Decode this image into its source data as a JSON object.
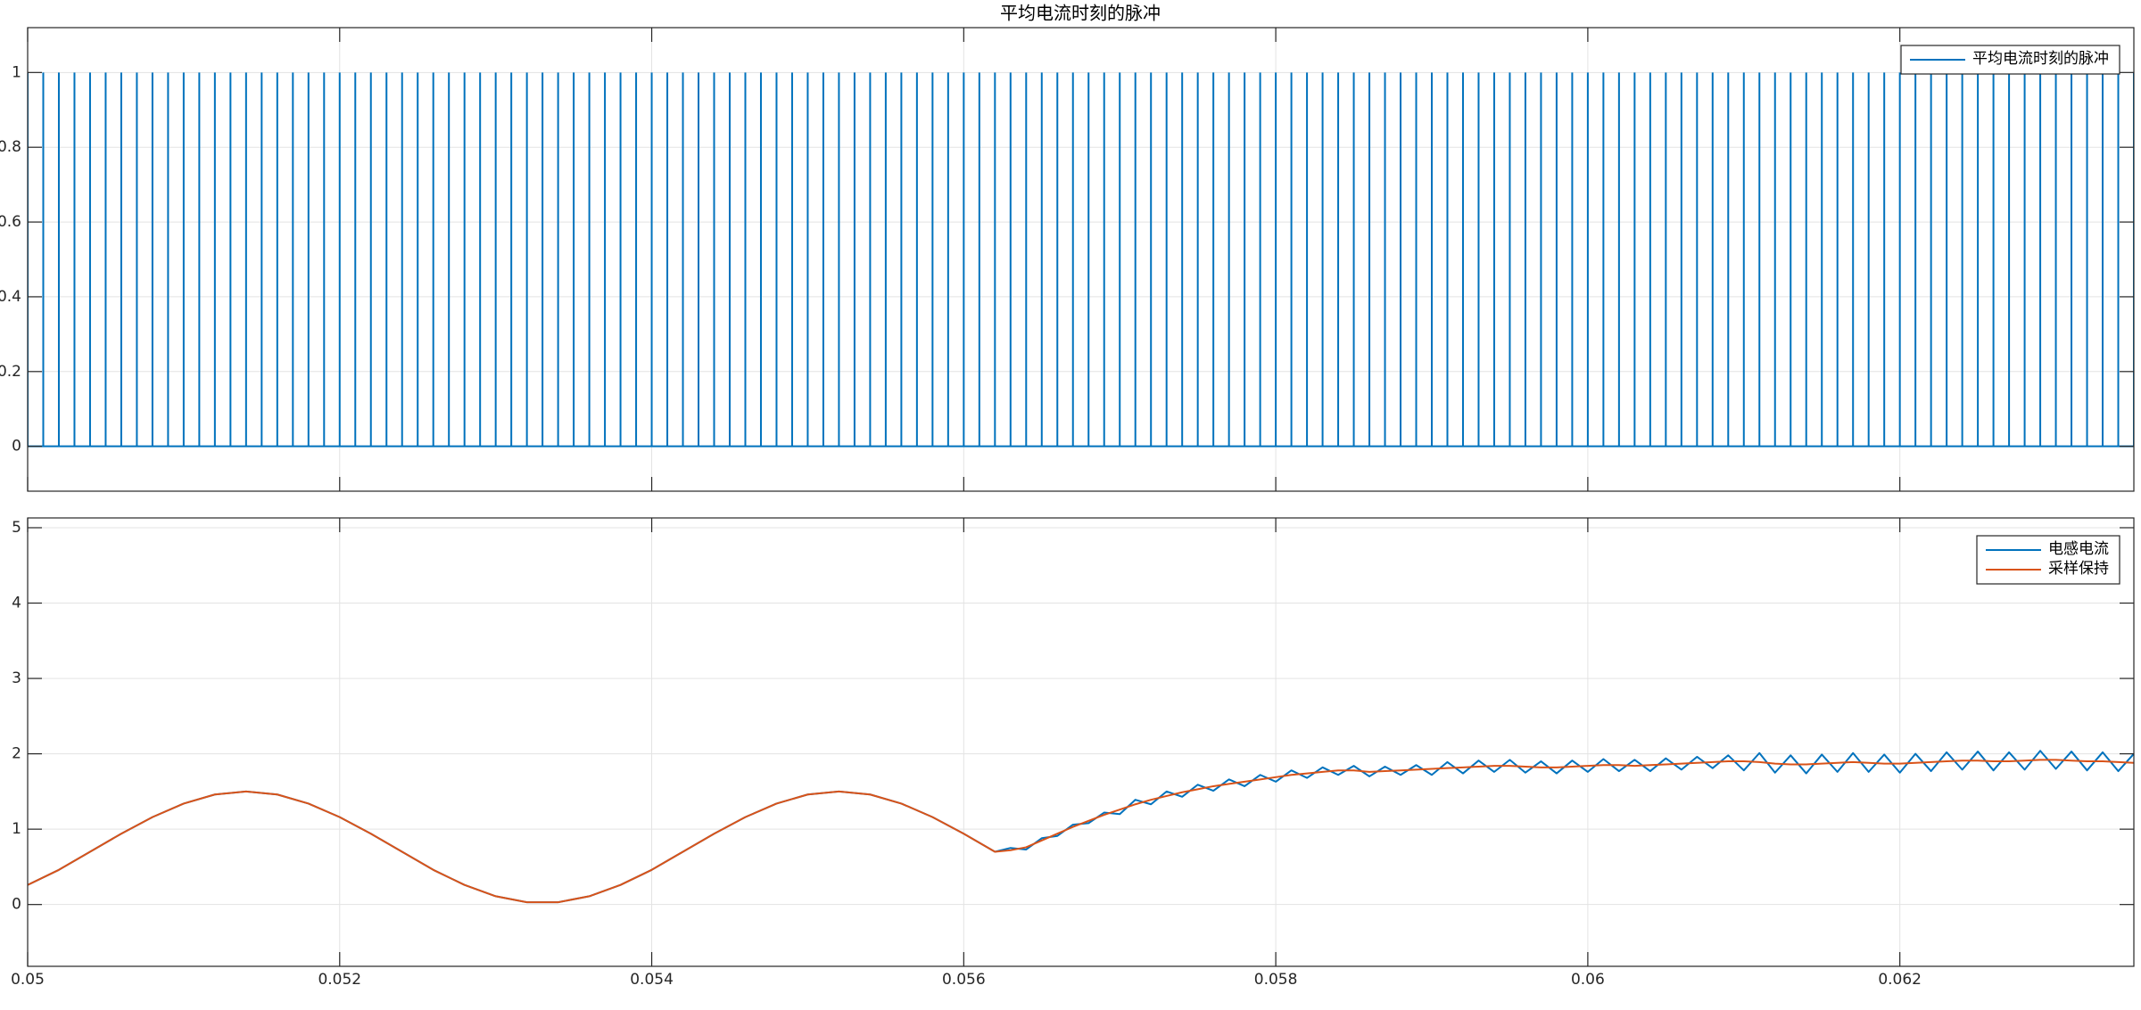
{
  "chart_data": [
    {
      "type": "stem",
      "title": "平均电流时刻的脉冲",
      "series": [
        {
          "name": "平均电流时刻的脉冲",
          "color": "#0072BD",
          "x": [
            0.05,
            0.0501,
            0.0502,
            0.0503,
            0.0504,
            0.0505,
            0.0506,
            0.0507,
            0.0508,
            0.0509,
            0.051,
            0.0511,
            0.0512,
            0.0513,
            0.0514,
            0.0515,
            0.0516,
            0.0517,
            0.0518,
            0.0519,
            0.052,
            0.0521,
            0.0522,
            0.0523,
            0.0524,
            0.0525,
            0.0526,
            0.0527,
            0.0528,
            0.0529,
            0.053,
            0.0531,
            0.0532,
            0.0533,
            0.0534,
            0.0535,
            0.0536,
            0.0537,
            0.0538,
            0.0539,
            0.054,
            0.0541,
            0.0542,
            0.0543,
            0.0544,
            0.0545,
            0.0546,
            0.0547,
            0.0548,
            0.0549,
            0.055,
            0.0551,
            0.0552,
            0.0553,
            0.0554,
            0.0555,
            0.0556,
            0.0557,
            0.0558,
            0.0559,
            0.056,
            0.0561,
            0.0562,
            0.0563,
            0.0564,
            0.0565,
            0.0566,
            0.0567,
            0.0568,
            0.0569,
            0.057,
            0.0571,
            0.0572,
            0.0573,
            0.0574,
            0.0575,
            0.0576,
            0.0577,
            0.0578,
            0.0579,
            0.058,
            0.0581,
            0.0582,
            0.0583,
            0.0584,
            0.0585,
            0.0586,
            0.0587,
            0.0588,
            0.0589,
            0.059,
            0.0591,
            0.0592,
            0.0593,
            0.0594,
            0.0595,
            0.0596,
            0.0597,
            0.0598,
            0.0599,
            0.06,
            0.0601,
            0.0602,
            0.0603,
            0.0604,
            0.0605,
            0.0606,
            0.0607,
            0.0608,
            0.0609,
            0.061,
            0.0611,
            0.0612,
            0.0613,
            0.0614,
            0.0615,
            0.0616,
            0.0617,
            0.0618,
            0.0619,
            0.062,
            0.0621,
            0.0622,
            0.0623,
            0.0624,
            0.0625,
            0.0626,
            0.0627,
            0.0628,
            0.0629,
            0.063,
            0.0631,
            0.0632,
            0.0633,
            0.0634,
            0.0635
          ],
          "values": [
            1,
            1,
            1,
            1,
            1,
            1,
            1,
            1,
            1,
            1,
            1,
            1,
            1,
            1,
            1,
            1,
            1,
            1,
            1,
            1,
            1,
            1,
            1,
            1,
            1,
            1,
            1,
            1,
            1,
            1,
            1,
            1,
            1,
            1,
            1,
            1,
            1,
            1,
            1,
            1,
            1,
            1,
            1,
            1,
            1,
            1,
            1,
            1,
            1,
            1,
            1,
            1,
            1,
            1,
            1,
            1,
            1,
            1,
            1,
            1,
            1,
            1,
            1,
            1,
            1,
            1,
            1,
            1,
            1,
            1,
            1,
            1,
            1,
            1,
            1,
            1,
            1,
            1,
            1,
            1,
            1,
            1,
            1,
            1,
            1,
            1,
            1,
            1,
            1,
            1,
            1,
            1,
            1,
            1,
            1,
            1,
            1,
            1,
            1,
            1,
            1,
            1,
            1,
            1,
            1,
            1,
            1,
            1,
            1,
            1,
            1,
            1,
            1,
            1,
            1,
            1,
            1,
            1,
            1,
            1,
            1,
            1,
            1,
            1,
            1,
            1,
            1,
            1,
            1,
            1,
            1,
            1,
            1,
            1,
            1,
            1
          ]
        }
      ],
      "xlim": [
        0.05,
        0.0635
      ],
      "ylim": [
        -0.12,
        1.12
      ],
      "yticks": [
        0,
        0.2,
        0.4,
        0.6,
        0.8,
        1
      ],
      "grid": true,
      "legend": "upper right"
    },
    {
      "type": "line",
      "x": [
        0.05,
        0.0502,
        0.0504,
        0.0506,
        0.0508,
        0.051,
        0.0512,
        0.0514,
        0.0516,
        0.0518,
        0.052,
        0.0522,
        0.0524,
        0.0526,
        0.0528,
        0.053,
        0.0532,
        0.0534,
        0.0536,
        0.0538,
        0.054,
        0.0542,
        0.0544,
        0.0546,
        0.0548,
        0.055,
        0.0552,
        0.0554,
        0.0556,
        0.0558,
        0.056,
        0.0562,
        0.0563,
        0.0564,
        0.0565,
        0.0566,
        0.0567,
        0.0568,
        0.0569,
        0.057,
        0.0571,
        0.0572,
        0.0573,
        0.0574,
        0.0575,
        0.0576,
        0.0577,
        0.0578,
        0.0579,
        0.058,
        0.0581,
        0.0582,
        0.0583,
        0.0584,
        0.0585,
        0.0586,
        0.0587,
        0.0588,
        0.0589,
        0.059,
        0.0591,
        0.0592,
        0.0593,
        0.0594,
        0.0595,
        0.0596,
        0.0597,
        0.0598,
        0.0599,
        0.06,
        0.0601,
        0.0602,
        0.0603,
        0.0604,
        0.0605,
        0.0606,
        0.0607,
        0.0608,
        0.0609,
        0.061,
        0.0611,
        0.0612,
        0.0613,
        0.0614,
        0.0615,
        0.0616,
        0.0617,
        0.0618,
        0.0619,
        0.062,
        0.0621,
        0.0622,
        0.0623,
        0.0624,
        0.0625,
        0.0626,
        0.0627,
        0.0628,
        0.0629,
        0.063,
        0.0631,
        0.0632,
        0.0633,
        0.0634,
        0.0635
      ],
      "series": [
        {
          "name": "电感电流",
          "color": "#0072BD",
          "values": [
            0.26,
            0.46,
            0.7,
            0.94,
            1.16,
            1.34,
            1.46,
            1.5,
            1.46,
            1.34,
            1.16,
            0.94,
            0.7,
            0.46,
            0.26,
            0.11,
            0.03,
            0.03,
            0.11,
            0.26,
            0.46,
            0.7,
            0.94,
            1.16,
            1.34,
            1.46,
            1.5,
            1.46,
            1.34,
            1.16,
            0.94,
            0.7,
            0.75,
            0.73,
            0.88,
            0.91,
            1.06,
            1.08,
            1.22,
            1.2,
            1.39,
            1.33,
            1.5,
            1.43,
            1.59,
            1.51,
            1.66,
            1.57,
            1.72,
            1.63,
            1.78,
            1.68,
            1.82,
            1.72,
            1.84,
            1.7,
            1.83,
            1.72,
            1.85,
            1.72,
            1.89,
            1.74,
            1.91,
            1.76,
            1.92,
            1.75,
            1.9,
            1.74,
            1.91,
            1.76,
            1.93,
            1.77,
            1.92,
            1.77,
            1.94,
            1.79,
            1.96,
            1.81,
            1.98,
            1.78,
            2.01,
            1.75,
            1.98,
            1.74,
            1.99,
            1.76,
            2.01,
            1.76,
            1.99,
            1.75,
            2,
            1.77,
            2.02,
            1.79,
            2.03,
            1.78,
            2.02,
            1.79,
            2.04,
            1.8,
            2.03,
            1.78,
            2.02,
            1.77,
            2
          ]
        },
        {
          "name": "采样保持",
          "color": "#D95319",
          "values": [
            0.26,
            0.46,
            0.7,
            0.94,
            1.16,
            1.34,
            1.46,
            1.5,
            1.46,
            1.34,
            1.16,
            0.94,
            0.7,
            0.46,
            0.26,
            0.11,
            0.03,
            0.03,
            0.11,
            0.26,
            0.46,
            0.7,
            0.94,
            1.16,
            1.34,
            1.46,
            1.5,
            1.46,
            1.34,
            1.16,
            0.94,
            0.7,
            0.72,
            0.76,
            0.85,
            0.94,
            1.03,
            1.11,
            1.19,
            1.26,
            1.33,
            1.39,
            1.44,
            1.49,
            1.53,
            1.57,
            1.6,
            1.63,
            1.66,
            1.69,
            1.72,
            1.74,
            1.76,
            1.78,
            1.78,
            1.76,
            1.77,
            1.78,
            1.79,
            1.8,
            1.81,
            1.82,
            1.83,
            1.84,
            1.84,
            1.83,
            1.82,
            1.82,
            1.83,
            1.84,
            1.85,
            1.85,
            1.84,
            1.85,
            1.86,
            1.87,
            1.88,
            1.89,
            1.9,
            1.9,
            1.89,
            1.87,
            1.86,
            1.86,
            1.87,
            1.88,
            1.89,
            1.88,
            1.87,
            1.87,
            1.88,
            1.89,
            1.9,
            1.91,
            1.91,
            1.9,
            1.9,
            1.91,
            1.92,
            1.92,
            1.91,
            1.9,
            1.9,
            1.89,
            1.88
          ]
        }
      ],
      "xlim": [
        0.05,
        0.0635
      ],
      "ylim": [
        -0.82,
        5.13
      ],
      "xticks": [
        0.05,
        0.052,
        0.054,
        0.056,
        0.058,
        0.06,
        0.062
      ],
      "yticks": [
        0,
        1,
        2,
        3,
        4,
        5
      ],
      "grid": true,
      "legend": "upper right"
    }
  ]
}
